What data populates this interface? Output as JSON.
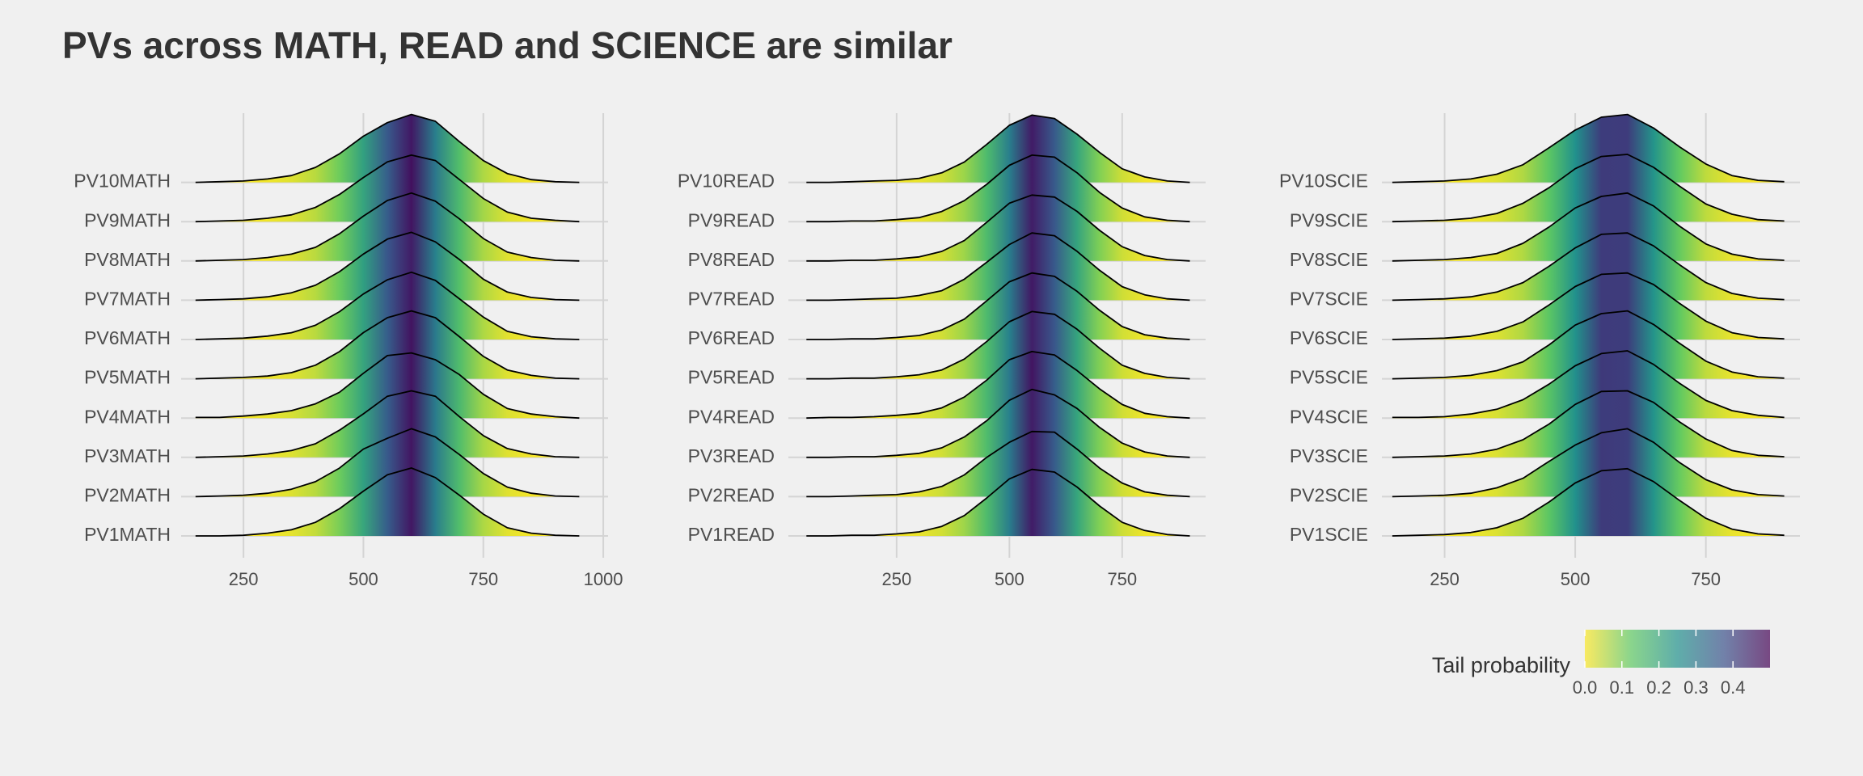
{
  "title": "PVs across MATH, READ and SCIENCE are similar",
  "legend": {
    "title": "Tail probability",
    "lim": [
      0,
      0.5
    ],
    "ticks": [
      {
        "value": 0,
        "label": "0.0"
      },
      {
        "value": 0.1,
        "label": "0.1"
      },
      {
        "value": 0.2,
        "label": "0.2"
      },
      {
        "value": 0.3,
        "label": "0.3"
      },
      {
        "value": 0.4,
        "label": "0.4"
      }
    ],
    "colors": [
      "#fde725",
      "#5ec962",
      "#21918c",
      "#3b528b",
      "#440154"
    ]
  },
  "chart_data": [
    {
      "type": "ridgeline",
      "xlim": [
        120,
        1010
      ],
      "xticks": [
        250,
        500,
        750,
        1000
      ],
      "grid": true,
      "x": [
        150,
        200,
        250,
        300,
        350,
        400,
        450,
        500,
        550,
        600,
        650,
        700,
        750,
        800,
        850,
        900,
        950
      ],
      "series": [
        {
          "name": "PV1MATH",
          "values": [
            0,
            0,
            0.01,
            0.04,
            0.09,
            0.2,
            0.4,
            0.66,
            0.9,
            1.0,
            0.86,
            0.6,
            0.32,
            0.12,
            0.04,
            0.01,
            0
          ]
        },
        {
          "name": "PV2MATH",
          "values": [
            0,
            0.01,
            0.02,
            0.05,
            0.11,
            0.22,
            0.42,
            0.7,
            0.86,
            1.0,
            0.88,
            0.62,
            0.34,
            0.14,
            0.05,
            0.01,
            0
          ]
        },
        {
          "name": "PV3MATH",
          "values": [
            0,
            0.01,
            0.02,
            0.05,
            0.1,
            0.2,
            0.4,
            0.64,
            0.9,
            0.98,
            0.9,
            0.6,
            0.32,
            0.13,
            0.05,
            0.01,
            0
          ]
        },
        {
          "name": "PV4MATH",
          "values": [
            0.01,
            0.01,
            0.03,
            0.06,
            0.11,
            0.21,
            0.38,
            0.66,
            0.92,
            0.96,
            0.86,
            0.64,
            0.35,
            0.14,
            0.06,
            0.02,
            0
          ]
        },
        {
          "name": "PV5MATH",
          "values": [
            0,
            0.01,
            0.02,
            0.04,
            0.09,
            0.2,
            0.4,
            0.68,
            0.9,
            1.0,
            0.9,
            0.62,
            0.33,
            0.13,
            0.05,
            0.01,
            0
          ]
        },
        {
          "name": "PV6MATH",
          "values": [
            0,
            0.01,
            0.02,
            0.05,
            0.1,
            0.21,
            0.41,
            0.67,
            0.88,
            0.99,
            0.87,
            0.6,
            0.33,
            0.12,
            0.04,
            0.01,
            0
          ]
        },
        {
          "name": "PV7MATH",
          "values": [
            0,
            0.01,
            0.02,
            0.05,
            0.11,
            0.22,
            0.42,
            0.68,
            0.9,
            1.0,
            0.86,
            0.6,
            0.31,
            0.12,
            0.04,
            0.01,
            0
          ]
        },
        {
          "name": "PV8MATH",
          "values": [
            0,
            0.01,
            0.02,
            0.05,
            0.1,
            0.2,
            0.4,
            0.66,
            0.89,
            1.0,
            0.88,
            0.62,
            0.33,
            0.13,
            0.05,
            0.01,
            0
          ]
        },
        {
          "name": "PV9MATH",
          "values": [
            0,
            0.01,
            0.02,
            0.05,
            0.1,
            0.21,
            0.4,
            0.65,
            0.88,
            0.98,
            0.9,
            0.62,
            0.34,
            0.14,
            0.05,
            0.02,
            0
          ]
        },
        {
          "name": "PV10MATH",
          "values": [
            0,
            0.01,
            0.02,
            0.05,
            0.1,
            0.22,
            0.42,
            0.68,
            0.88,
            1.0,
            0.9,
            0.6,
            0.32,
            0.13,
            0.04,
            0.01,
            0
          ]
        }
      ]
    },
    {
      "type": "ridgeline",
      "xlim": [
        10,
        935
      ],
      "xticks": [
        250,
        500,
        750
      ],
      "grid": true,
      "x": [
        50,
        100,
        150,
        200,
        250,
        300,
        350,
        400,
        450,
        500,
        550,
        600,
        650,
        700,
        750,
        800,
        850,
        900
      ],
      "series": [
        {
          "name": "PV1READ",
          "values": [
            0,
            0,
            0.01,
            0.01,
            0.03,
            0.06,
            0.14,
            0.3,
            0.56,
            0.84,
            0.98,
            0.94,
            0.72,
            0.44,
            0.2,
            0.08,
            0.02,
            0
          ]
        },
        {
          "name": "PV2READ",
          "values": [
            0,
            0,
            0.01,
            0.02,
            0.03,
            0.07,
            0.15,
            0.32,
            0.58,
            0.8,
            0.96,
            0.95,
            0.7,
            0.42,
            0.2,
            0.07,
            0.02,
            0
          ]
        },
        {
          "name": "PV3READ",
          "values": [
            0,
            0,
            0.01,
            0.01,
            0.03,
            0.06,
            0.14,
            0.3,
            0.54,
            0.84,
            1.0,
            0.92,
            0.72,
            0.44,
            0.21,
            0.08,
            0.02,
            0
          ]
        },
        {
          "name": "PV4READ",
          "values": [
            0,
            0.01,
            0.01,
            0.02,
            0.04,
            0.07,
            0.15,
            0.31,
            0.56,
            0.86,
            0.98,
            0.93,
            0.7,
            0.43,
            0.2,
            0.07,
            0.02,
            0
          ]
        },
        {
          "name": "PV5READ",
          "values": [
            0,
            0,
            0.01,
            0.01,
            0.03,
            0.06,
            0.13,
            0.29,
            0.55,
            0.84,
            0.99,
            0.95,
            0.73,
            0.45,
            0.2,
            0.08,
            0.02,
            0
          ]
        },
        {
          "name": "PV6READ",
          "values": [
            0,
            0,
            0.01,
            0.01,
            0.03,
            0.06,
            0.14,
            0.3,
            0.57,
            0.85,
            0.98,
            0.93,
            0.71,
            0.43,
            0.19,
            0.07,
            0.02,
            0
          ]
        },
        {
          "name": "PV7READ",
          "values": [
            0,
            0,
            0.01,
            0.02,
            0.03,
            0.07,
            0.14,
            0.31,
            0.56,
            0.82,
            0.99,
            0.95,
            0.72,
            0.44,
            0.2,
            0.08,
            0.02,
            0
          ]
        },
        {
          "name": "PV8READ",
          "values": [
            0,
            0,
            0.01,
            0.01,
            0.03,
            0.06,
            0.14,
            0.3,
            0.57,
            0.85,
            0.97,
            0.94,
            0.73,
            0.45,
            0.21,
            0.08,
            0.02,
            0
          ]
        },
        {
          "name": "PV9READ",
          "values": [
            0,
            0,
            0.01,
            0.01,
            0.03,
            0.06,
            0.15,
            0.31,
            0.55,
            0.83,
            0.98,
            0.95,
            0.72,
            0.43,
            0.2,
            0.07,
            0.02,
            0
          ]
        },
        {
          "name": "PV10READ",
          "values": [
            0,
            0,
            0.01,
            0.02,
            0.03,
            0.06,
            0.14,
            0.3,
            0.56,
            0.84,
            0.99,
            0.94,
            0.71,
            0.44,
            0.2,
            0.08,
            0.02,
            0
          ]
        }
      ]
    },
    {
      "type": "ridgeline",
      "xlim": [
        130,
        930
      ],
      "xticks": [
        250,
        500,
        750
      ],
      "grid": true,
      "x": [
        150,
        200,
        250,
        300,
        350,
        400,
        450,
        500,
        550,
        600,
        650,
        700,
        750,
        800,
        850,
        900
      ],
      "series": [
        {
          "name": "PV1SCIE",
          "values": [
            0,
            0.01,
            0.02,
            0.05,
            0.12,
            0.26,
            0.5,
            0.78,
            0.96,
            0.99,
            0.8,
            0.52,
            0.26,
            0.1,
            0.03,
            0.01
          ]
        },
        {
          "name": "PV2SCIE",
          "values": [
            0,
            0.01,
            0.02,
            0.05,
            0.13,
            0.27,
            0.52,
            0.76,
            0.94,
            1.0,
            0.8,
            0.5,
            0.25,
            0.1,
            0.03,
            0.01
          ]
        },
        {
          "name": "PV3SCIE",
          "values": [
            0,
            0.01,
            0.02,
            0.05,
            0.12,
            0.26,
            0.49,
            0.78,
            0.97,
            0.98,
            0.81,
            0.52,
            0.27,
            0.1,
            0.03,
            0.01
          ]
        },
        {
          "name": "PV4SCIE",
          "values": [
            0.01,
            0.01,
            0.02,
            0.06,
            0.13,
            0.27,
            0.5,
            0.77,
            0.95,
            0.99,
            0.79,
            0.51,
            0.26,
            0.11,
            0.04,
            0.01
          ]
        },
        {
          "name": "PV5SCIE",
          "values": [
            0,
            0.01,
            0.02,
            0.05,
            0.12,
            0.25,
            0.5,
            0.79,
            0.96,
            1.0,
            0.8,
            0.52,
            0.26,
            0.1,
            0.03,
            0.01
          ]
        },
        {
          "name": "PV6SCIE",
          "values": [
            0,
            0.01,
            0.02,
            0.05,
            0.12,
            0.26,
            0.51,
            0.78,
            0.96,
            0.98,
            0.81,
            0.53,
            0.27,
            0.1,
            0.03,
            0.01
          ]
        },
        {
          "name": "PV7SCIE",
          "values": [
            0,
            0.01,
            0.02,
            0.05,
            0.12,
            0.26,
            0.5,
            0.77,
            0.97,
            0.99,
            0.8,
            0.52,
            0.26,
            0.1,
            0.03,
            0.01
          ]
        },
        {
          "name": "PV8SCIE",
          "values": [
            0,
            0.01,
            0.02,
            0.05,
            0.11,
            0.26,
            0.5,
            0.78,
            0.95,
            1.0,
            0.81,
            0.51,
            0.25,
            0.1,
            0.03,
            0.01
          ]
        },
        {
          "name": "PV9SCIE",
          "values": [
            0,
            0.01,
            0.02,
            0.05,
            0.12,
            0.27,
            0.5,
            0.78,
            0.96,
            0.99,
            0.8,
            0.52,
            0.26,
            0.11,
            0.03,
            0.01
          ]
        },
        {
          "name": "PV10SCIE",
          "values": [
            0,
            0.01,
            0.02,
            0.05,
            0.12,
            0.26,
            0.51,
            0.77,
            0.96,
            1.0,
            0.8,
            0.52,
            0.27,
            0.1,
            0.03,
            0.01
          ]
        }
      ]
    }
  ]
}
